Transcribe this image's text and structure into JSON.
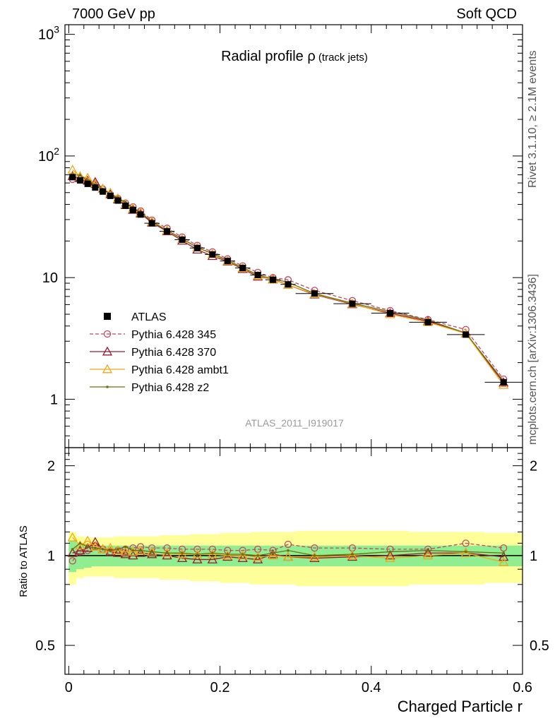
{
  "header": {
    "left": "7000 GeV pp",
    "right": "Soft QCD"
  },
  "side_text": {
    "rivet": "Rivet 3.1.10, ≥ 2.1M events",
    "mcplots": "mcplots.cern.ch [arXiv:1306.3436]"
  },
  "chart_data": {
    "type": "line",
    "title_main": "Radial profile ",
    "title_rho": "ρ",
    "title_sub": " (track jets)",
    "analysis_id": "ATLAS_2011_I919017",
    "xlabel": "Charged Particle r",
    "ylabel_ratio": "Ratio to ATLAS",
    "xlim": [
      -0.005,
      0.6
    ],
    "ylim": [
      0.4,
      1200
    ],
    "yscale": "log",
    "ratio_ylim": [
      0.4,
      2.3
    ],
    "ratio_yscale": "log",
    "x_ticks": [
      "0",
      "0.2",
      "0.4",
      "0.6"
    ],
    "y_tick_labels": [
      {
        "v": 1,
        "t": "1"
      },
      {
        "v": 10,
        "t": "10"
      },
      {
        "v": 100,
        "t": "10",
        "sup": "2"
      },
      {
        "v": 1000,
        "t": "10",
        "sup": "3"
      }
    ],
    "ratio_tick_labels": [
      "0.5",
      "1",
      "2"
    ],
    "x": [
      0.005,
      0.015,
      0.025,
      0.035,
      0.045,
      0.055,
      0.065,
      0.075,
      0.085,
      0.095,
      0.11,
      0.13,
      0.15,
      0.17,
      0.19,
      0.21,
      0.23,
      0.25,
      0.27,
      0.29,
      0.325,
      0.375,
      0.425,
      0.475,
      0.525,
      0.575
    ],
    "x_err": [
      0.005,
      0.005,
      0.005,
      0.005,
      0.005,
      0.005,
      0.005,
      0.005,
      0.005,
      0.005,
      0.01,
      0.01,
      0.01,
      0.01,
      0.01,
      0.01,
      0.01,
      0.01,
      0.01,
      0.01,
      0.025,
      0.025,
      0.025,
      0.025,
      0.025,
      0.025
    ],
    "data": {
      "name": "ATLAS",
      "values": [
        67,
        63,
        59,
        55,
        51,
        47,
        43,
        39,
        36,
        33,
        28,
        24,
        20.5,
        17.5,
        15.5,
        13.7,
        12,
        10.5,
        9.6,
        8.8,
        7.4,
        6.1,
        5.1,
        4.3,
        3.4,
        1.38
      ],
      "stat_band": [
        0.12,
        0.1,
        0.09,
        0.08,
        0.08,
        0.08,
        0.08,
        0.08,
        0.08,
        0.08,
        0.08,
        0.08,
        0.08,
        0.08,
        0.08,
        0.08,
        0.08,
        0.08,
        0.08,
        0.08,
        0.08,
        0.08,
        0.08,
        0.08,
        0.08,
        0.08
      ],
      "total_band": [
        0.2,
        0.16,
        0.15,
        0.15,
        0.15,
        0.15,
        0.16,
        0.16,
        0.16,
        0.16,
        0.16,
        0.17,
        0.17,
        0.18,
        0.18,
        0.19,
        0.19,
        0.2,
        0.2,
        0.2,
        0.21,
        0.21,
        0.21,
        0.2,
        0.2,
        0.19
      ]
    },
    "series": [
      {
        "name": "Pythia 6.428 345",
        "color": "#c0485f",
        "dash": "5,3",
        "marker": "circle",
        "ratio": [
          0.96,
          1.03,
          1.04,
          1.07,
          1.05,
          1.03,
          1.04,
          1.05,
          1.06,
          1.07,
          1.06,
          1.06,
          1.05,
          1.05,
          1.05,
          1.04,
          1.04,
          1.05,
          1.04,
          1.09,
          1.06,
          1.06,
          1.05,
          1.05,
          1.1,
          1.06
        ]
      },
      {
        "name": "Pythia 6.428 370",
        "color": "#9a1a30",
        "dash": "",
        "marker": "triangle",
        "ratio": [
          1.02,
          1.04,
          1.06,
          1.11,
          1.05,
          1.03,
          1.02,
          1.01,
          1.0,
          1.02,
          1.01,
          1.0,
          0.98,
          0.97,
          0.97,
          0.99,
          0.98,
          0.97,
          1.01,
          0.99,
          0.98,
          0.99,
          1.0,
          1.02,
          1.02,
          0.99
        ]
      },
      {
        "name": "Pythia 6.428 ambt1",
        "color": "#f0a818",
        "dash": "",
        "marker": "triangle",
        "ratio": [
          1.15,
          1.08,
          1.12,
          1.07,
          1.05,
          1.06,
          1.04,
          1.03,
          1.03,
          1.04,
          1.03,
          1.02,
          1.01,
          1.01,
          1.01,
          1.0,
          1.0,
          0.99,
          1.0,
          0.99,
          0.99,
          1.0,
          0.98,
          1.0,
          1.02,
          0.95
        ]
      },
      {
        "name": "Pythia 6.428 z2",
        "color": "#6b7010",
        "dash": "",
        "marker": "dot",
        "ratio": [
          1.05,
          1.1,
          1.07,
          1.06,
          1.05,
          1.04,
          1.05,
          1.07,
          1.04,
          1.04,
          1.03,
          1.02,
          1.02,
          1.01,
          1.02,
          1.01,
          1.01,
          1.0,
          1.02,
          1.04,
          1.0,
          1.01,
          1.03,
          1.04,
          1.03,
          1.02
        ]
      }
    ],
    "legend_position": "lower-left",
    "band_colors": {
      "stat": "#90ee90",
      "total": "#ffff99"
    }
  }
}
